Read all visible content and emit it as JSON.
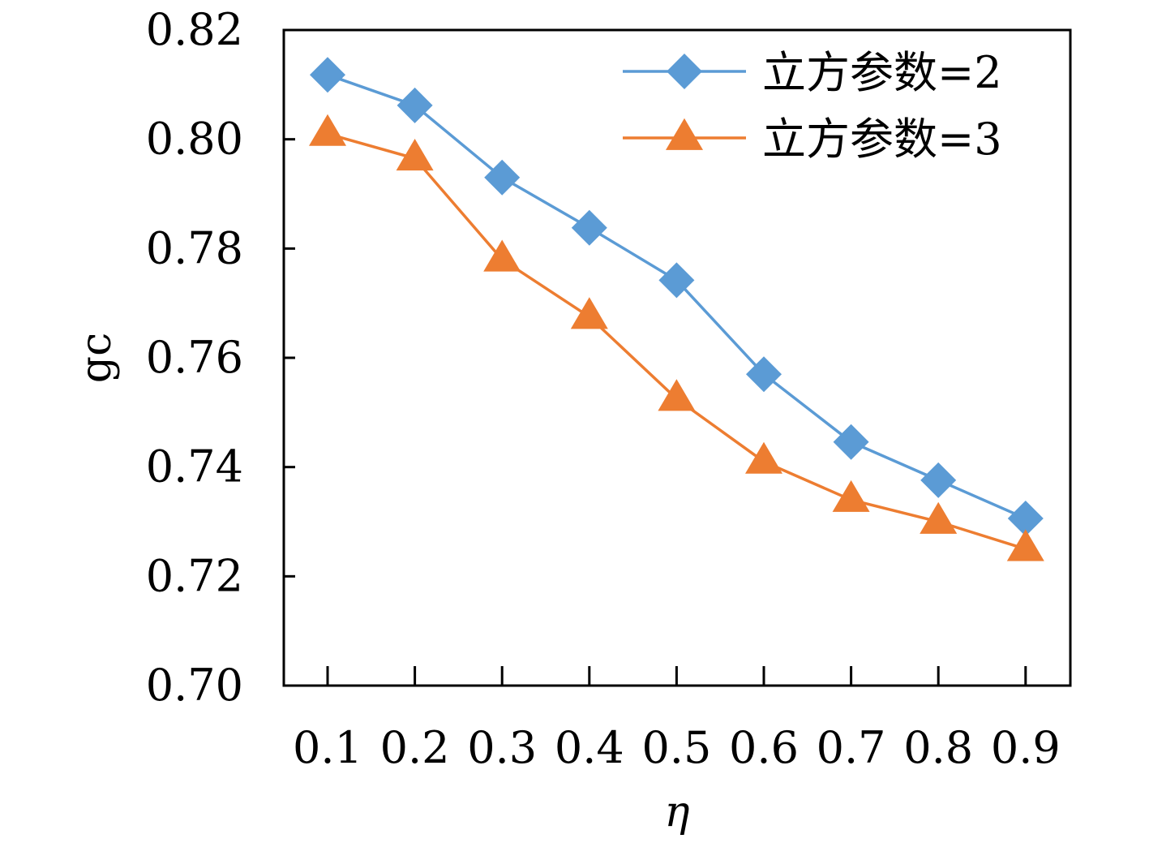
{
  "chart_data": {
    "type": "line",
    "x": [
      0.1,
      0.2,
      0.3,
      0.4,
      0.5,
      0.6,
      0.7,
      0.8,
      0.9
    ],
    "x_tick_labels": [
      "0.1",
      "0.2",
      "0.3",
      "0.4",
      "0.5",
      "0.6",
      "0.7",
      "0.8",
      "0.9"
    ],
    "y_tick_labels": [
      "0.70",
      "0.72",
      "0.74",
      "0.76",
      "0.78",
      "0.80",
      "0.82"
    ],
    "y_ticks": [
      0.7,
      0.72,
      0.74,
      0.76,
      0.78,
      0.8,
      0.82
    ],
    "ylim": [
      0.7,
      0.82
    ],
    "xlabel": "η",
    "ylabel": "gc",
    "grid": false,
    "legend_position": "top-right",
    "series": [
      {
        "name": "立方参数=2",
        "color": "#5b9bd5",
        "marker": "diamond",
        "values": [
          0.8118,
          0.8062,
          0.793,
          0.7838,
          0.7742,
          0.757,
          0.7446,
          0.7376,
          0.7306
        ]
      },
      {
        "name": "立方参数=3",
        "color": "#ed7d31",
        "marker": "triangle",
        "values": [
          0.801,
          0.7965,
          0.778,
          0.7675,
          0.7525,
          0.741,
          0.734,
          0.73,
          0.725
        ]
      }
    ]
  }
}
